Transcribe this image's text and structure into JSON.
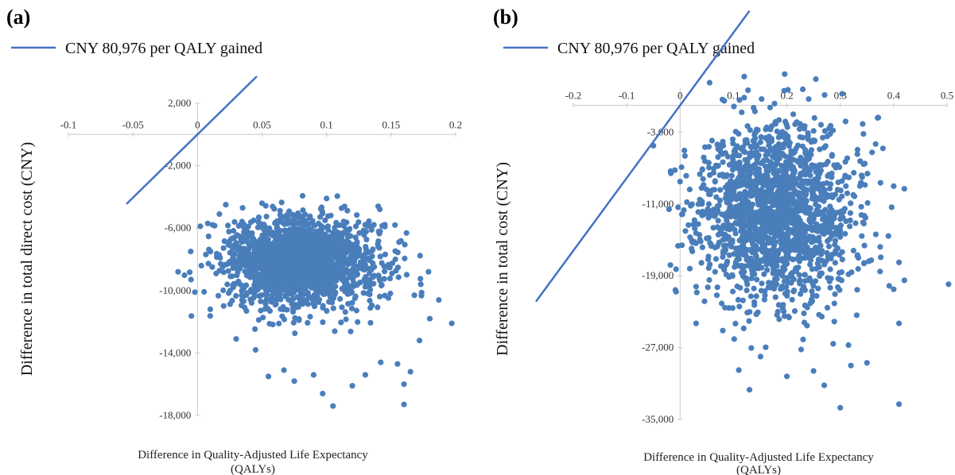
{
  "chart_data": [
    {
      "type": "scatter",
      "panel_label": "(a)",
      "title": "",
      "legend": {
        "line_label": "CNY 80,976 per QALY gained",
        "placement": "top-left"
      },
      "xlabel_line1": "Difference in Quality-Adjusted Life Expectancy",
      "xlabel_line2": "(QALYs)",
      "ylabel": "Difference in total direct cost (CNY)",
      "xlim": [
        -0.1,
        0.2
      ],
      "ylim": [
        -18000,
        2000
      ],
      "x_ticks": [
        -0.1,
        -0.05,
        0,
        0.05,
        0.1,
        0.15,
        0.2
      ],
      "x_tick_labels": [
        "-0.1",
        "-0.05",
        "0",
        "0.05",
        "0.1",
        "0.15",
        "0.2"
      ],
      "y_ticks": [
        2000,
        -2000,
        -6000,
        -10000,
        -14000,
        -18000
      ],
      "y_tick_labels": [
        "2,000",
        "-2,000",
        "-6,000",
        "-10,000",
        "-14,000",
        "-18,000"
      ],
      "threshold_line": {
        "wtp_per_qaly": 80976,
        "x_range": [
          -0.055,
          0.046
        ]
      },
      "cloud": {
        "x_mean": 0.08,
        "x_sd": 0.03,
        "y_mean": -8200,
        "y_sd": 1400,
        "n": 1800,
        "seed": 7
      },
      "points": [
        [
          -0.015,
          -8800
        ],
        [
          -0.005,
          -9300
        ],
        [
          0.003,
          -8400
        ],
        [
          0.01,
          -7500
        ],
        [
          -0.002,
          -10100
        ],
        [
          0.008,
          -5700
        ],
        [
          0.017,
          -5100
        ],
        [
          0.022,
          -4500
        ],
        [
          0.03,
          -13100
        ],
        [
          0.045,
          -13800
        ],
        [
          0.055,
          -15500
        ],
        [
          0.067,
          -15100
        ],
        [
          0.075,
          -15800
        ],
        [
          0.09,
          -15400
        ],
        [
          0.097,
          -16600
        ],
        [
          0.105,
          -17400
        ],
        [
          0.12,
          -16100
        ],
        [
          0.13,
          -15400
        ],
        [
          0.142,
          -14600
        ],
        [
          0.155,
          -14700
        ],
        [
          0.16,
          -16000
        ],
        [
          0.16,
          -17300
        ],
        [
          0.165,
          -15200
        ],
        [
          0.172,
          -13200
        ],
        [
          0.18,
          -11800
        ],
        [
          0.187,
          -10600
        ],
        [
          0.197,
          -12100
        ],
        [
          0.173,
          -9600
        ],
        [
          0.179,
          -8800
        ],
        [
          0.168,
          -10300
        ],
        [
          0.1,
          -4100
        ],
        [
          0.05,
          -4400
        ],
        [
          0.035,
          -4700
        ],
        [
          0.14,
          -4600
        ],
        [
          0.153,
          -5800
        ]
      ]
    },
    {
      "type": "scatter",
      "panel_label": "(b)",
      "title": "",
      "legend": {
        "line_label": "CNY 80,976 per QALY gained",
        "placement": "top-left"
      },
      "xlabel_line1": "Difference in Quality-Adjusted Life Expectancy",
      "xlabel_line2": "(QALYs)",
      "ylabel": "Difference in total cost (CNY)",
      "xlim": [
        -0.2,
        0.5
      ],
      "ylim": [
        -35000,
        2000
      ],
      "x_ticks": [
        -0.2,
        -0.1,
        0,
        0.1,
        0.2,
        0.3,
        0.4,
        0.5
      ],
      "x_tick_labels": [
        "-0.2",
        "-0.1",
        "0",
        "0.1",
        "0.2",
        "0.3",
        "0.4",
        "0.5"
      ],
      "y_ticks": [
        -3000,
        -11000,
        -19000,
        -27000,
        -35000
      ],
      "y_tick_labels": [
        "-3,000",
        "-11,000",
        "-19,000",
        "-27,000",
        "-35,000"
      ],
      "threshold_line": {
        "wtp_per_qaly": 80976,
        "x_range": [
          -0.27,
          0.13
        ]
      },
      "cloud": {
        "x_mean": 0.18,
        "x_sd": 0.07,
        "y_mean": -12000,
        "y_sd": 5000,
        "n": 1800,
        "seed": 11
      },
      "points": [
        [
          -0.05,
          -4500
        ],
        [
          0,
          -8500
        ],
        [
          0.02,
          -11200
        ],
        [
          0.01,
          -14000
        ],
        [
          0.03,
          -20200
        ],
        [
          0.03,
          -24300
        ],
        [
          0.08,
          -25100
        ],
        [
          0.11,
          -29500
        ],
        [
          0.13,
          -31700
        ],
        [
          0.2,
          -30200
        ],
        [
          0.25,
          -29600
        ],
        [
          0.3,
          -33700
        ],
        [
          0.35,
          -28700
        ],
        [
          0.41,
          -33300
        ],
        [
          0.41,
          -24300
        ],
        [
          0.42,
          -19500
        ],
        [
          0.41,
          -17500
        ],
        [
          0.42,
          -9300
        ],
        [
          0.4,
          -9000
        ],
        [
          0.38,
          -4800
        ],
        [
          0.37,
          -1400
        ],
        [
          0.12,
          3200
        ],
        [
          0.27,
          -31200
        ],
        [
          0.32,
          -29000
        ],
        [
          0.4,
          -20500
        ]
      ]
    }
  ]
}
